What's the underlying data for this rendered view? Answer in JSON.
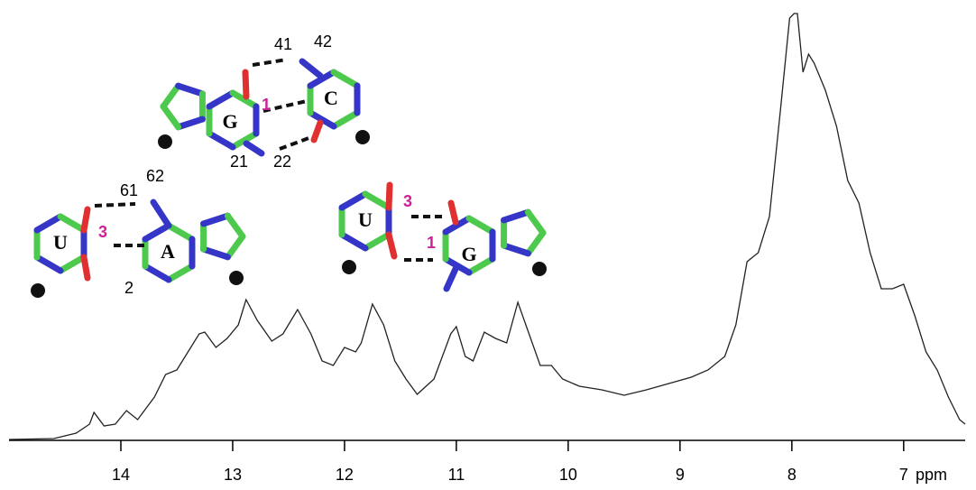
{
  "chart_data": {
    "type": "line",
    "x_label": "ppm",
    "x": [
      15.0,
      14.6,
      14.4,
      14.28,
      14.24,
      14.15,
      14.05,
      13.95,
      13.85,
      13.7,
      13.6,
      13.5,
      13.4,
      13.3,
      13.25,
      13.15,
      13.05,
      12.95,
      12.88,
      12.78,
      12.65,
      12.55,
      12.42,
      12.3,
      12.2,
      12.1,
      12.0,
      11.9,
      11.85,
      11.75,
      11.65,
      11.55,
      11.45,
      11.35,
      11.2,
      11.05,
      11.0,
      10.92,
      10.85,
      10.75,
      10.65,
      10.55,
      10.45,
      10.35,
      10.25,
      10.15,
      10.05,
      9.9,
      9.7,
      9.5,
      9.3,
      9.1,
      8.9,
      8.75,
      8.6,
      8.5,
      8.4,
      8.3,
      8.2,
      8.1,
      8.02,
      7.98,
      7.95,
      7.9,
      7.85,
      7.8,
      7.7,
      7.6,
      7.5,
      7.4,
      7.3,
      7.2,
      7.1,
      7.0,
      6.9,
      6.8,
      6.7,
      6.6,
      6.5,
      6.45
    ],
    "values": [
      10,
      11,
      17,
      27,
      40,
      25,
      27,
      42,
      32,
      57,
      82,
      87,
      107,
      127,
      129,
      112,
      122,
      137,
      165,
      142,
      119,
      127,
      154,
      127,
      97,
      92,
      112,
      107,
      117,
      160,
      137,
      97,
      77,
      60,
      77,
      127,
      135,
      102,
      97,
      129,
      122,
      117,
      162,
      127,
      92,
      92,
      77,
      69,
      65,
      59,
      65,
      72,
      79,
      87,
      102,
      137,
      207,
      217,
      257,
      377,
      477,
      482,
      482,
      417,
      437,
      427,
      397,
      357,
      297,
      272,
      217,
      177,
      177,
      182,
      147,
      107,
      87,
      57,
      32,
      27
    ],
    "xlim": [
      15.0,
      6.45
    ],
    "xticks": [
      14,
      13,
      12,
      11,
      10,
      9,
      8,
      7
    ],
    "ylim": [
      0,
      490
    ],
    "color": "#222222",
    "annotations": [
      "G",
      "C",
      "41",
      "42",
      "1",
      "21",
      "22",
      "U",
      "A",
      "61",
      "62",
      "3",
      "2",
      "U",
      "G",
      "3",
      "1"
    ]
  }
}
